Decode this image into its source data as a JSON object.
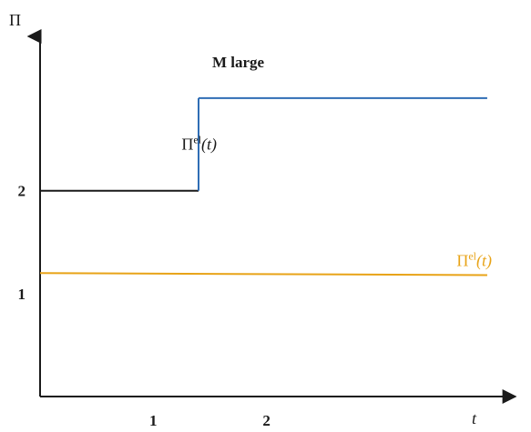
{
  "chart_data": {
    "type": "line",
    "title": "",
    "xlabel": "t",
    "ylabel": "Π",
    "x_ticks": [
      {
        "value": 1,
        "label": "1"
      },
      {
        "value": 2,
        "label": "2"
      }
    ],
    "y_ticks": [
      {
        "value": 1,
        "label": "1"
      },
      {
        "value": 2,
        "label": "2"
      }
    ],
    "xlim": [
      0,
      4.2
    ],
    "ylim": [
      0,
      3.5
    ],
    "grid": false,
    "annotations": [
      {
        "text": "M large",
        "x": 1.75,
        "y": 3.2
      }
    ],
    "series": [
      {
        "label_base": "Π",
        "label_sup": "el",
        "label_arg": "(t)",
        "label_x": 1.25,
        "label_y": 2.4,
        "points": [
          [
            0,
            2.0
          ],
          [
            1.4,
            2.0
          ],
          [
            1.4,
            2.9
          ],
          [
            3.95,
            2.9
          ]
        ],
        "segment_colors": [
          "#1a1a1a",
          "#2f6db5",
          "#2f6db5"
        ]
      },
      {
        "label_base": "Π",
        "label_sup": "el",
        "label_arg": "(t)",
        "label_x": 3.68,
        "label_y": 1.27,
        "points": [
          [
            0,
            1.2
          ],
          [
            3.95,
            1.18
          ]
        ],
        "segment_colors": [
          "#e8a317"
        ]
      }
    ],
    "colors": {
      "axis": "#1a1a1a",
      "blue_line": "#2f6db5",
      "orange_line": "#e8a317",
      "black_line": "#1a1a1a",
      "orange_label": "#e8a317"
    }
  }
}
